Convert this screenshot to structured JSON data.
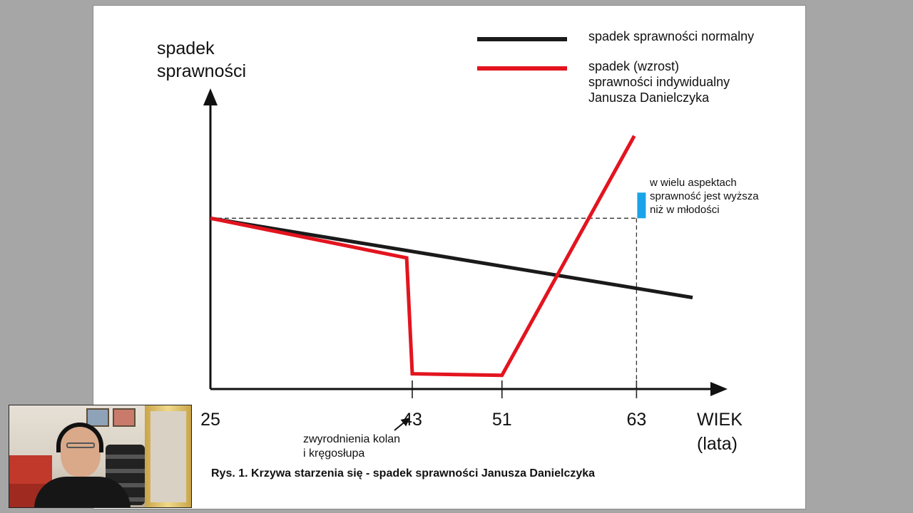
{
  "chart_data": {
    "type": "line",
    "ylabel_line1": "spadek",
    "ylabel_line2": "sprawności",
    "xlabel_line1": "WIEK",
    "xlabel_line2": "(lata)",
    "xticks": [
      "25",
      "43",
      "51",
      "63"
    ],
    "tick_values": [
      25,
      43,
      51,
      63
    ],
    "xlim": [
      25,
      68
    ],
    "legend_position": "top-right",
    "series": [
      {
        "name": "spadek sprawności normalny",
        "color": "#1a1a1a",
        "points": [
          [
            25,
            0.56
          ],
          [
            68,
            0.3
          ]
        ]
      },
      {
        "name_lines": [
          "spadek (wzrost)",
          "sprawności indywidualny",
          "Janusza Danielczyka"
        ],
        "color": "#e3141f",
        "points": [
          [
            25,
            0.56
          ],
          [
            42.5,
            0.43
          ],
          [
            43,
            0.05
          ],
          [
            51,
            0.045
          ],
          [
            62.8,
            0.83
          ]
        ]
      }
    ],
    "annotations": [
      {
        "lines": [
          "w wielu aspektach",
          "sprawność jest wyższa",
          "niż w młodości"
        ],
        "marker_color": "#1aa3e8"
      },
      {
        "lines": [
          "zwyrodnienia kolan",
          "i kręgosłupa"
        ]
      }
    ],
    "caption": "Rys. 1. Krzywa starzenia się - spadek sprawności Janusza Danielczyka"
  }
}
